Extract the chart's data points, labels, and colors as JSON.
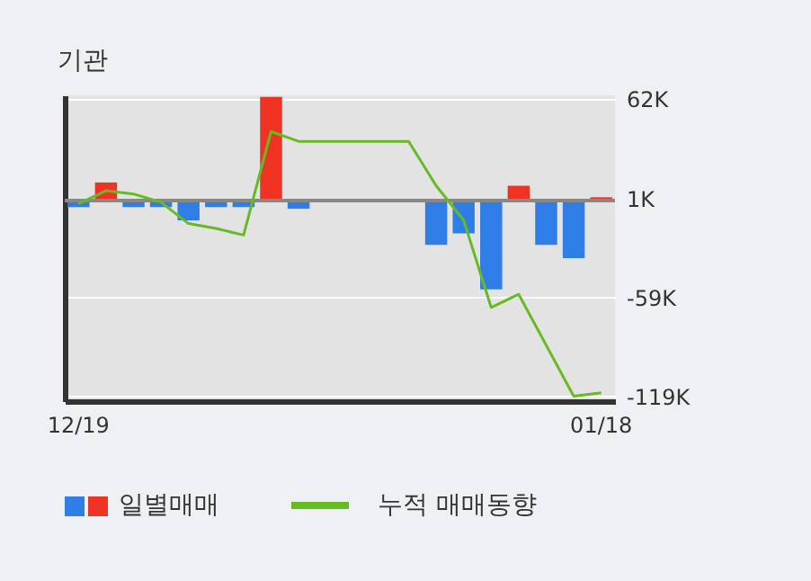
{
  "chart_data": {
    "type": "bar",
    "title": "기관",
    "categories": [
      "12/19",
      null,
      null,
      null,
      null,
      null,
      null,
      null,
      null,
      null,
      null,
      null,
      null,
      null,
      null,
      null,
      null,
      null,
      null,
      "01/18"
    ],
    "series": [
      {
        "name": "일별매매",
        "colors": [
          "#2f7ee8",
          "#ee3322",
          "#2f7ee8",
          "#2f7ee8",
          "#2f7ee8",
          "#2f7ee8",
          "#2f7ee8",
          "#ee3322",
          "#2f7ee8",
          "#2f7ee8",
          "#2f7ee8",
          "#2f7ee8",
          "#2f7ee8",
          "#2f7ee8",
          "#2f7ee8",
          "#2f7ee8",
          "#ee3322",
          "#2f7ee8",
          "#2f7ee8",
          "#ee3322"
        ],
        "values": [
          -4,
          11,
          -4,
          -4,
          -12,
          -4,
          -4,
          63,
          -5,
          0,
          0,
          0,
          0,
          -27,
          -20,
          -54,
          9,
          -27,
          -35,
          2
        ]
      },
      {
        "name": "누적 매매동향",
        "type": "line",
        "color": "#66bb22",
        "values": [
          -2,
          6,
          4,
          -1,
          -14,
          -17,
          -21,
          42,
          36,
          36,
          36,
          36,
          36,
          9,
          -12,
          -65,
          -57,
          -88,
          -119,
          -117
        ]
      }
    ],
    "ylim": [
      -122,
      64
    ],
    "yticks": [
      {
        "value": 62,
        "label": "62K"
      },
      {
        "value": 1,
        "label": "1K"
      },
      {
        "value": -59,
        "label": "-59K"
      },
      {
        "value": -119,
        "label": "-119K"
      }
    ],
    "grid": "y",
    "legend": "bottom"
  }
}
